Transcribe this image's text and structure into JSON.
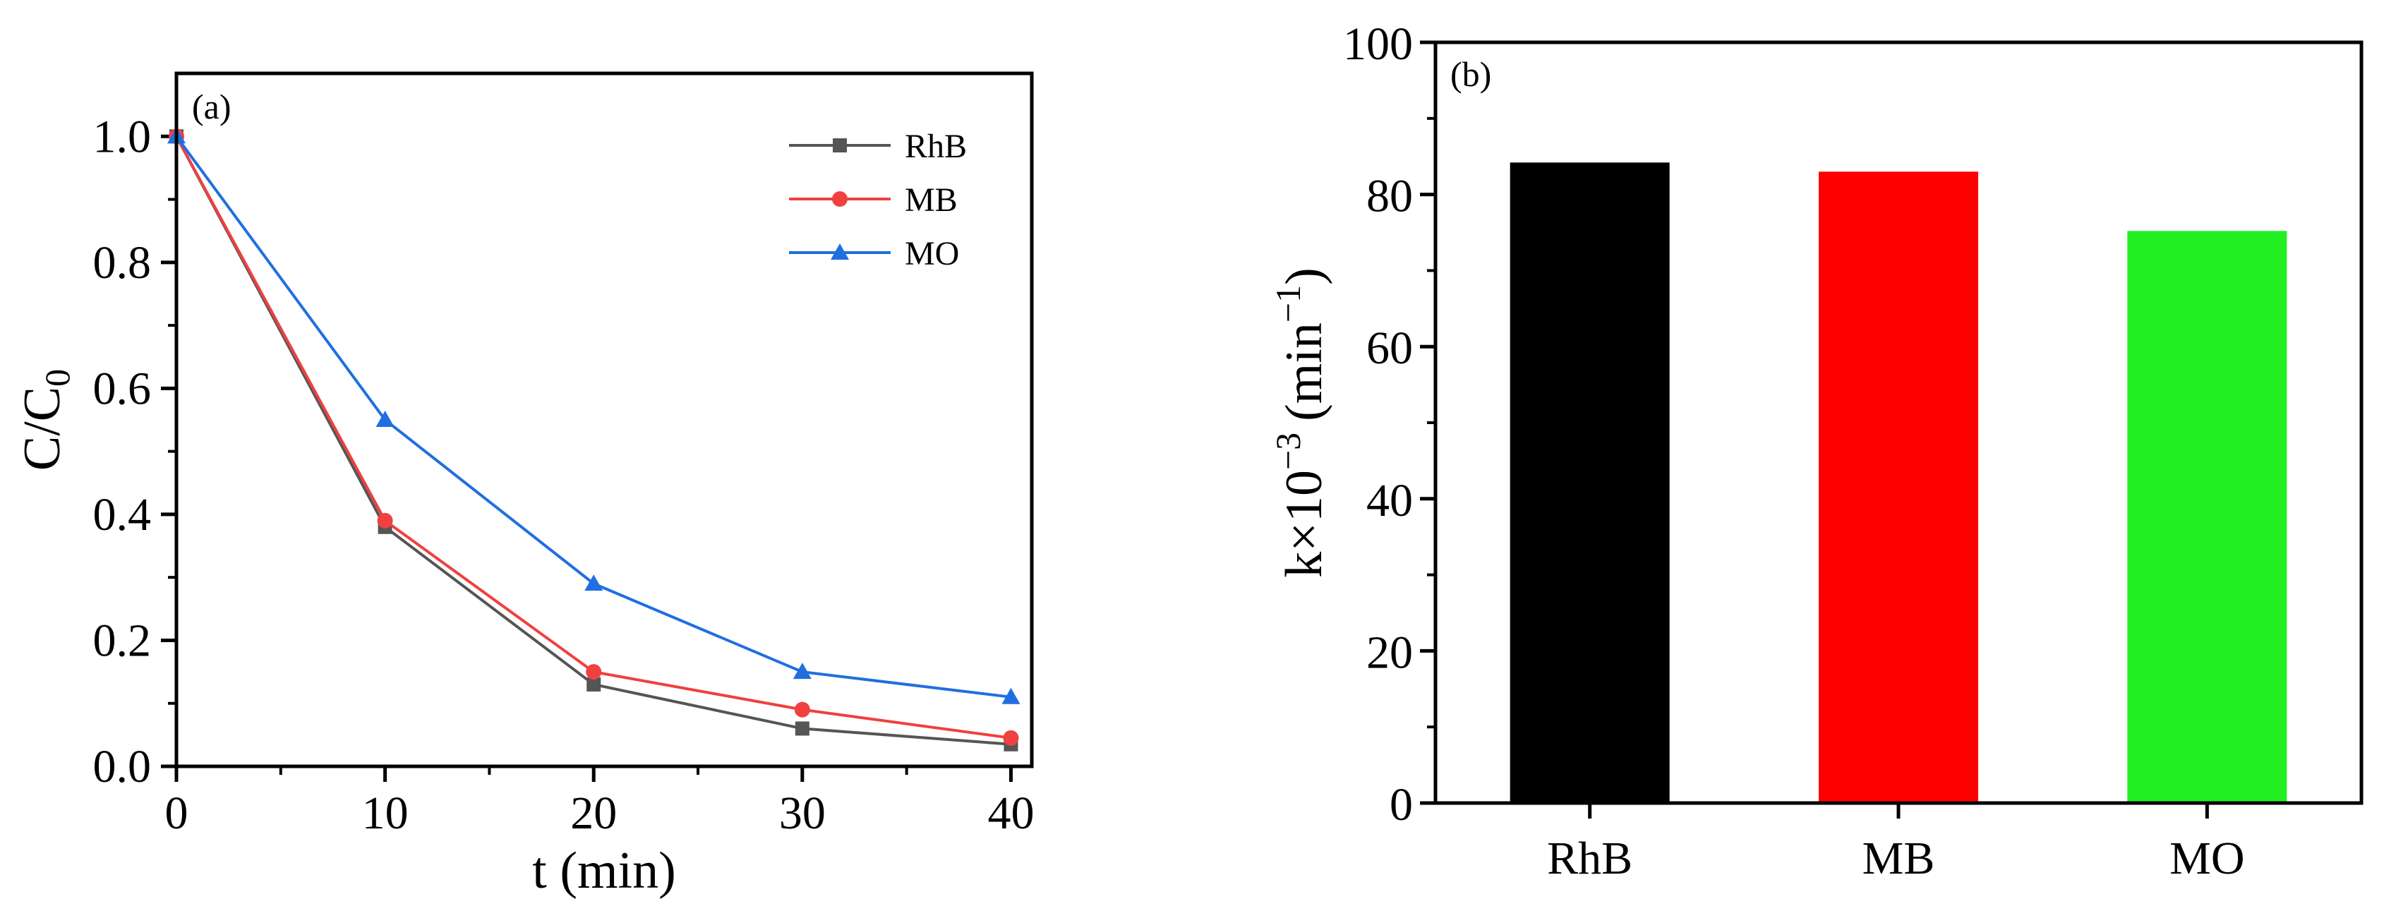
{
  "chart_data": [
    {
      "panel_label": "(a)",
      "type": "line",
      "xlabel": "t (min)",
      "ylabel_main": "C/C",
      "ylabel_sub": "0",
      "x": [
        0,
        10,
        20,
        30,
        40
      ],
      "xlim": [
        0,
        41
      ],
      "ylim": [
        0,
        1.1
      ],
      "xticks": [
        0,
        10,
        20,
        30,
        40
      ],
      "yticks": [
        0.0,
        0.2,
        0.4,
        0.6,
        0.8,
        1.0
      ],
      "ytick_labels": [
        "0.0",
        "0.2",
        "0.4",
        "0.6",
        "0.8",
        "1.0"
      ],
      "legend_position": "top-right",
      "series": [
        {
          "name": "RhB",
          "marker": "square",
          "color": "#555555",
          "values": [
            1.0,
            0.38,
            0.13,
            0.06,
            0.035
          ]
        },
        {
          "name": "MB",
          "marker": "circle",
          "color": "#f04040",
          "values": [
            1.0,
            0.39,
            0.15,
            0.09,
            0.045
          ]
        },
        {
          "name": "MO",
          "marker": "triangle",
          "color": "#1f6fe0",
          "values": [
            1.0,
            0.55,
            0.29,
            0.15,
            0.11
          ]
        }
      ]
    },
    {
      "panel_label": "(b)",
      "type": "bar",
      "ylabel": "k×10",
      "ylabel_exp": "−3",
      "ylabel_unit": "(min",
      "ylabel_unit_exp": "−1",
      "ylabel_close": ")",
      "categories": [
        "RhB",
        "MB",
        "MO"
      ],
      "values": [
        84.2,
        83.0,
        75.2
      ],
      "colors": [
        "#000000",
        "#ff0000",
        "#22ee22"
      ],
      "ylim": [
        0,
        100
      ],
      "yticks": [
        0,
        20,
        40,
        60,
        80,
        100
      ]
    }
  ]
}
